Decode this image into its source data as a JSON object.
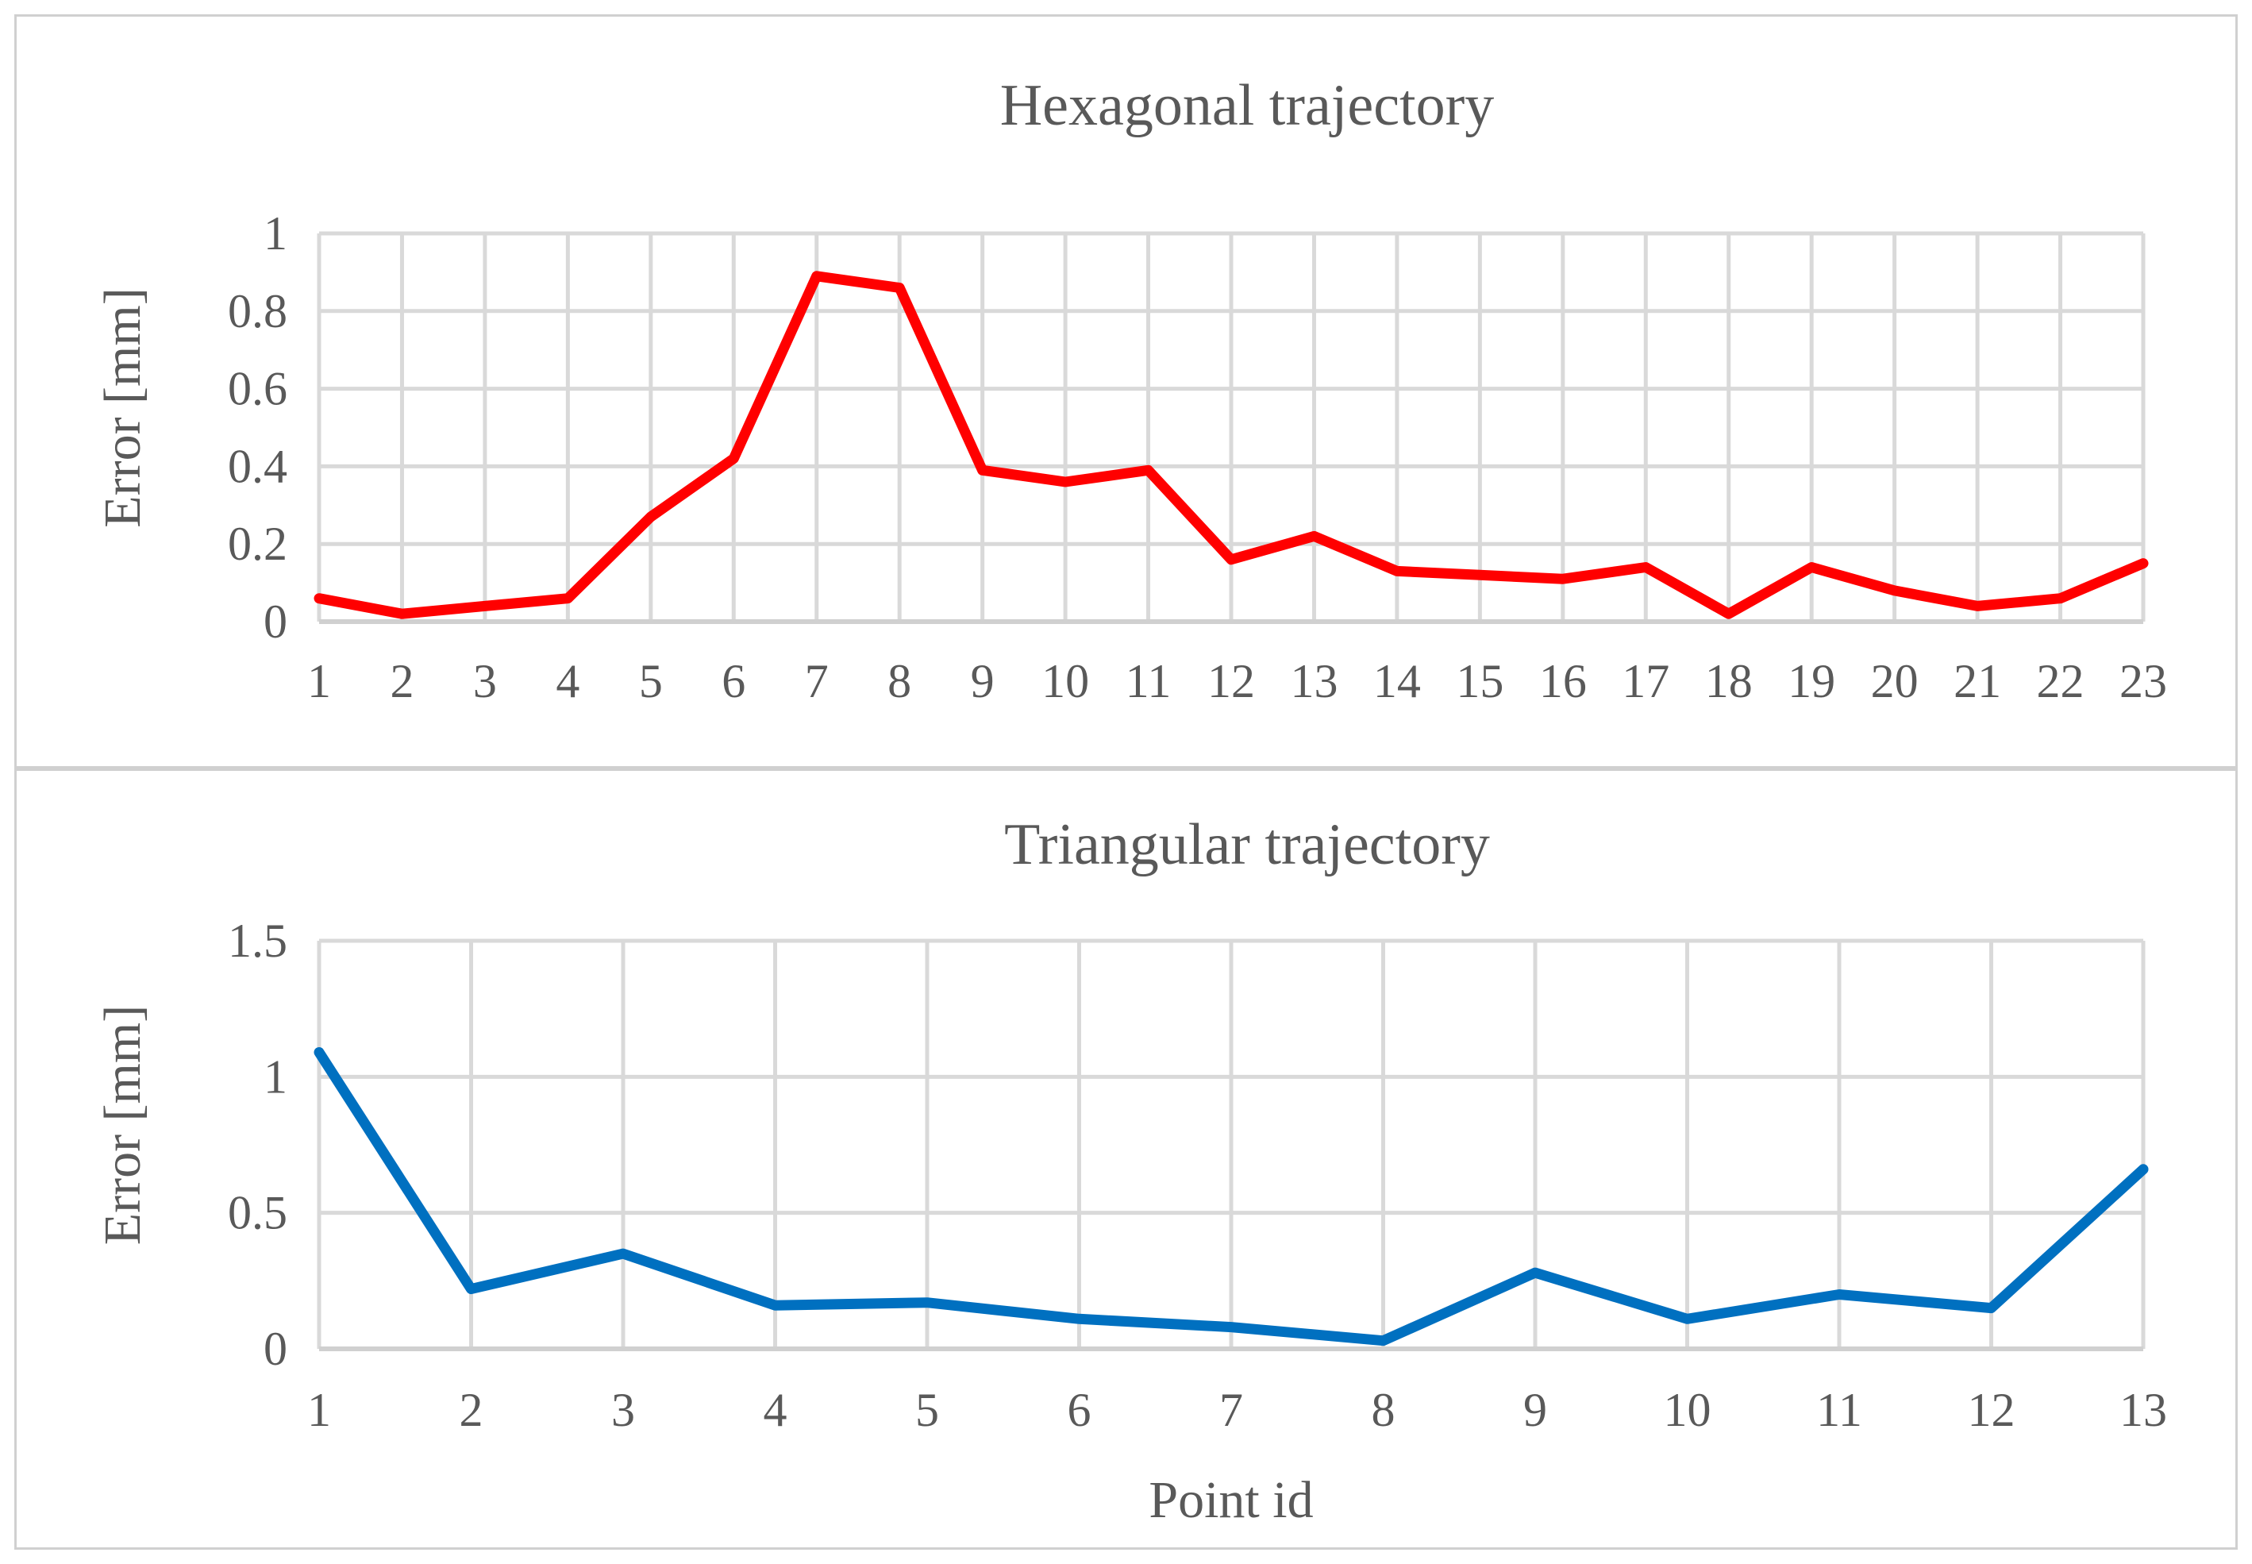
{
  "chart_data": [
    {
      "type": "line",
      "title": "Hexagonal trajectory",
      "xlabel": "",
      "ylabel": "Error [mm]",
      "ylim": [
        0,
        1
      ],
      "yticks": [
        "0",
        "0.2",
        "0.4",
        "0.6",
        "0.8",
        "1"
      ],
      "ytick_values": [
        0,
        0.2,
        0.4,
        0.6,
        0.8,
        1
      ],
      "categories": [
        "1",
        "2",
        "3",
        "4",
        "5",
        "6",
        "7",
        "8",
        "9",
        "10",
        "11",
        "12",
        "13",
        "14",
        "15",
        "16",
        "17",
        "18",
        "19",
        "20",
        "21",
        "22",
        "23"
      ],
      "grid": true,
      "legend": "none",
      "series": [
        {
          "color": "#ff0000",
          "values": [
            0.06,
            0.02,
            0.04,
            0.06,
            0.27,
            0.42,
            0.89,
            0.86,
            0.39,
            0.36,
            0.39,
            0.16,
            0.22,
            0.13,
            0.12,
            0.11,
            0.14,
            0.02,
            0.14,
            0.08,
            0.04,
            0.06,
            0.15
          ]
        }
      ]
    },
    {
      "type": "line",
      "title": "Triangular trajectory",
      "xlabel": "Point id",
      "ylabel": "Error [mm]",
      "ylim": [
        0,
        1.5
      ],
      "yticks": [
        "0",
        "0.5",
        "1",
        "1.5"
      ],
      "ytick_values": [
        0,
        0.5,
        1,
        1.5
      ],
      "categories": [
        "1",
        "2",
        "3",
        "4",
        "5",
        "6",
        "7",
        "8",
        "9",
        "10",
        "11",
        "12",
        "13"
      ],
      "grid": true,
      "legend": "none",
      "series": [
        {
          "color": "#0070c0",
          "values": [
            1.09,
            0.22,
            0.35,
            0.16,
            0.17,
            0.11,
            0.08,
            0.03,
            0.28,
            0.11,
            0.2,
            0.15,
            0.66
          ]
        }
      ]
    }
  ]
}
